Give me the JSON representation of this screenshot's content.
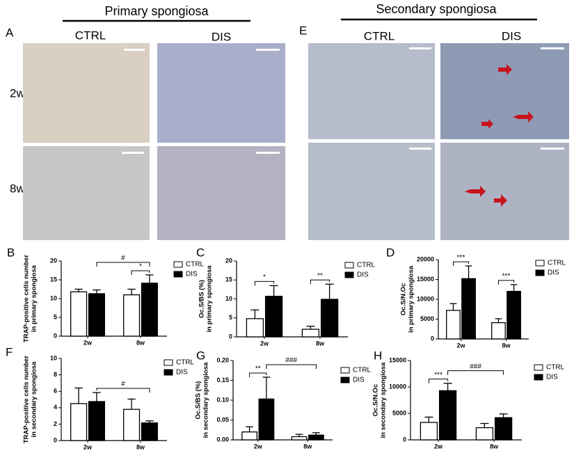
{
  "figure": {
    "left_title": "Primary spongiosa",
    "right_title": "Secondary spongiosa",
    "panels": [
      "A",
      "E"
    ],
    "columns": [
      "CTRL",
      "DIS",
      "CTRL",
      "DIS"
    ],
    "rows": [
      "2w",
      "8w"
    ]
  },
  "chart_data": [
    {
      "type": "bar",
      "label": "B",
      "ylabel": [
        "TRAP-positive cells number",
        "in primary spongiosa"
      ],
      "categories": [
        "2w",
        "8w"
      ],
      "ylim": [
        0,
        20
      ],
      "yticks": [
        0,
        5,
        10,
        15,
        20
      ],
      "series": [
        {
          "name": "CTRL",
          "color": "#ffffff",
          "values": [
            11.8,
            11
          ],
          "errors": [
            0.7,
            1.5
          ]
        },
        {
          "name": "DIS",
          "color": "#000000",
          "values": [
            11.3,
            14.1
          ],
          "errors": [
            1,
            2.2
          ]
        }
      ],
      "annotations": [
        {
          "label": "*",
          "from": [
            0,
            1
          ],
          "to": [
            1,
            1
          ]
        },
        {
          "label": "#",
          "from": [
            1,
            0
          ],
          "to": [
            1,
            1
          ]
        }
      ]
    },
    {
      "type": "bar",
      "label": "C",
      "ylabel": [
        "Oc.S/BS (%)",
        "in primary spongiosa"
      ],
      "categories": [
        "2w",
        "8w"
      ],
      "ylim": [
        0,
        20
      ],
      "yticks": [
        0,
        5,
        10,
        15,
        20
      ],
      "series": [
        {
          "name": "CTRL",
          "color": "#ffffff",
          "values": [
            4.8,
            2.0
          ],
          "errors": [
            2.3,
            0.8
          ]
        },
        {
          "name": "DIS",
          "color": "#000000",
          "values": [
            10.7,
            9.9
          ],
          "errors": [
            2.8,
            4.0
          ]
        }
      ],
      "annotations": [
        {
          "label": "*",
          "from": [
            0,
            0
          ],
          "to": [
            1,
            0
          ]
        },
        {
          "label": "**",
          "from": [
            0,
            1
          ],
          "to": [
            1,
            1
          ]
        }
      ]
    },
    {
      "type": "bar",
      "label": "D",
      "ylabel": [
        "Oc.S/N.Oc",
        "in primary spongiosa"
      ],
      "categories": [
        "2w",
        "8w"
      ],
      "ylim": [
        0,
        20000
      ],
      "yticks": [
        0,
        5000,
        10000,
        15000,
        20000
      ],
      "series": [
        {
          "name": "CTRL",
          "color": "#ffffff",
          "values": [
            7200,
            4100
          ],
          "errors": [
            1700,
            1000
          ]
        },
        {
          "name": "DIS",
          "color": "#000000",
          "values": [
            15200,
            12000
          ],
          "errors": [
            3200,
            1700
          ]
        }
      ],
      "annotations": [
        {
          "label": "***",
          "from": [
            0,
            0
          ],
          "to": [
            1,
            0
          ]
        },
        {
          "label": "***",
          "from": [
            0,
            1
          ],
          "to": [
            1,
            1
          ]
        }
      ]
    },
    {
      "type": "bar",
      "label": "F",
      "ylabel": [
        "TRAP-positive cells number",
        "in secondary spongiosa"
      ],
      "categories": [
        "2w",
        "8w"
      ],
      "ylim": [
        0,
        10
      ],
      "yticks": [
        0,
        2,
        4,
        6,
        8,
        10
      ],
      "series": [
        {
          "name": "CTRL",
          "color": "#ffffff",
          "values": [
            4.5,
            3.8
          ],
          "errors": [
            1.9,
            1.25
          ]
        },
        {
          "name": "DIS",
          "color": "#000000",
          "values": [
            4.75,
            2.15
          ],
          "errors": [
            1.1,
            0.25
          ]
        }
      ],
      "annotations": [
        {
          "label": "#",
          "from": [
            1,
            0
          ],
          "to": [
            1,
            1
          ]
        }
      ]
    },
    {
      "type": "bar",
      "label": "G",
      "ylabel": [
        "Oc.S/BS (%)",
        "in secondary spongiosa"
      ],
      "categories": [
        "2w",
        "8w"
      ],
      "ylim": [
        0,
        0.2
      ],
      "yticks": [
        {
          "value": 0,
          "label": "0.00"
        },
        {
          "value": 0.05,
          "label": "0.05"
        },
        {
          "value": 0.1,
          "label": "0.10"
        },
        {
          "value": 0.15,
          "label": "0.15"
        },
        {
          "value": 0.2,
          "label": "0.20"
        }
      ],
      "series": [
        {
          "name": "CTRL",
          "color": "#ffffff",
          "values": [
            0.02,
            0.008
          ],
          "errors": [
            0.013,
            0.006
          ]
        },
        {
          "name": "DIS",
          "color": "#000000",
          "values": [
            0.103,
            0.012
          ],
          "errors": [
            0.055,
            0.006
          ]
        }
      ],
      "annotations": [
        {
          "label": "**",
          "from": [
            0,
            0
          ],
          "to": [
            1,
            0
          ]
        },
        {
          "label": "###",
          "from": [
            1,
            0
          ],
          "to": [
            1,
            1
          ]
        }
      ]
    },
    {
      "type": "bar",
      "label": "H",
      "ylabel": [
        "Oc.S/N.Oc",
        "in secondary spongiosa"
      ],
      "categories": [
        "2w",
        "8w"
      ],
      "ylim": [
        0,
        15000
      ],
      "yticks": [
        0,
        5000,
        10000,
        15000
      ],
      "series": [
        {
          "name": "CTRL",
          "color": "#ffffff",
          "values": [
            3300,
            2300
          ],
          "errors": [
            1000,
            800
          ]
        },
        {
          "name": "DIS",
          "color": "#000000",
          "values": [
            9300,
            4200
          ],
          "errors": [
            1400,
            700
          ]
        }
      ],
      "annotations": [
        {
          "label": "***",
          "from": [
            0,
            0
          ],
          "to": [
            1,
            0
          ]
        },
        {
          "label": "###",
          "from": [
            1,
            0
          ],
          "to": [
            1,
            1
          ]
        }
      ]
    }
  ]
}
